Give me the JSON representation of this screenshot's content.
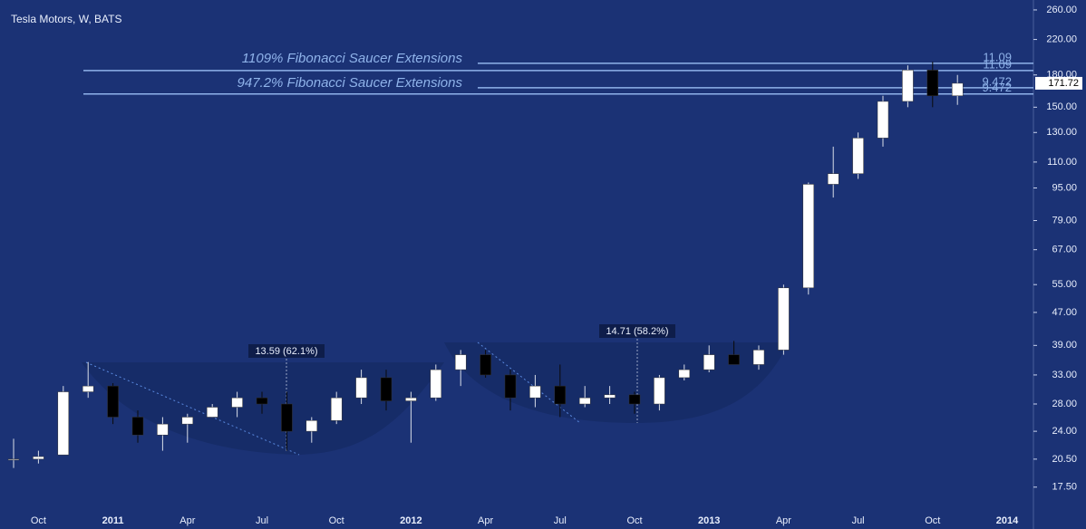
{
  "chart_data": {
    "type": "candlestick",
    "title": "Tesla Motors, W, BATS",
    "categories": [
      null,
      "Oct",
      null,
      null,
      "2011",
      null,
      null,
      "Apr",
      null,
      null,
      "Jul",
      null,
      null,
      "Oct",
      null,
      null,
      "2012",
      null,
      null,
      "Apr",
      null,
      null,
      "Jul",
      null,
      null,
      "Oct",
      null,
      null,
      "2013",
      null,
      null,
      "Apr",
      null,
      null,
      "Jul",
      null,
      null,
      "Oct",
      null,
      null,
      "2014"
    ],
    "open": [
      20.5,
      20.5,
      21,
      30,
      31,
      26,
      23.5,
      25,
      26,
      27.5,
      29,
      28,
      24,
      25.5,
      29,
      32.5,
      28.5,
      29,
      34,
      37,
      33,
      29,
      31,
      28,
      29,
      29.5,
      28,
      32.5,
      34,
      37,
      35,
      38,
      54,
      97,
      103,
      126,
      155,
      185,
      160,
      null,
      null
    ],
    "high": [
      23,
      21.5,
      31,
      35.5,
      31.5,
      27,
      26,
      26.5,
      28,
      30,
      30,
      30,
      26,
      30,
      34,
      34,
      30,
      35,
      38,
      38,
      34,
      33,
      35,
      31,
      31,
      30,
      33,
      35,
      39,
      40,
      39,
      55,
      98,
      120,
      130,
      160,
      190,
      194,
      180,
      null,
      null
    ],
    "low": [
      19.5,
      20,
      21,
      29,
      25,
      22.5,
      21.5,
      22.5,
      26,
      26,
      26.5,
      21.5,
      22.5,
      25,
      28,
      27,
      22.5,
      28.5,
      31,
      32.5,
      27,
      27.5,
      26,
      27.5,
      28,
      26.5,
      27,
      32,
      33.5,
      35,
      34,
      37,
      52,
      90,
      100,
      120,
      150,
      150,
      152,
      null,
      null
    ],
    "close": [
      20.5,
      20.8,
      30,
      31,
      26,
      23.5,
      25,
      26,
      27.5,
      29,
      28,
      24,
      25.5,
      29,
      32.5,
      28.5,
      29,
      34,
      37,
      33,
      29,
      31,
      28,
      29,
      29.5,
      28,
      32.5,
      34,
      37,
      35,
      38,
      54,
      97,
      103,
      126,
      155,
      185,
      160,
      171.72,
      null,
      null
    ],
    "up_color": "#ffffff",
    "down_color": "#000000",
    "log_scale": true,
    "ylim": [
      15.3,
      275
    ],
    "yticks": [
      {
        "value": 260,
        "label": "260.00"
      },
      {
        "value": 220,
        "label": "220.00"
      },
      {
        "value": 180,
        "label": "180.00"
      },
      {
        "value": 150,
        "label": "150.00"
      },
      {
        "value": 130,
        "label": "130.00"
      },
      {
        "value": 110,
        "label": "110.00"
      },
      {
        "value": 95,
        "label": "95.00"
      },
      {
        "value": 79,
        "label": "79.00"
      },
      {
        "value": 67,
        "label": "67.00"
      },
      {
        "value": 55,
        "label": "55.00"
      },
      {
        "value": 47,
        "label": "47.00"
      },
      {
        "value": 39,
        "label": "39.00"
      },
      {
        "value": 33,
        "label": "33.00"
      },
      {
        "value": 28,
        "label": "28.00"
      },
      {
        "value": 24,
        "label": "24.00"
      },
      {
        "value": 20.5,
        "label": "20.50"
      },
      {
        "value": 17.5,
        "label": "17.50"
      }
    ],
    "last_price": 171.72,
    "fib_titles": [
      "1109% Fibonacci Saucer Extensions",
      "947.2% Fibonacci Saucer Extensions"
    ],
    "fib_levels": [
      {
        "label": "11.09",
        "value": 192.3
      },
      {
        "label": "11.09",
        "value": 184.6
      },
      {
        "label": "9.472",
        "value": 167.4
      },
      {
        "label": "9.472",
        "value": 161.6
      }
    ],
    "fib_color": "#8fb3ea",
    "saucer_labels": [
      "13.59 (62.1%)",
      "14.71 (58.2%)"
    ]
  }
}
